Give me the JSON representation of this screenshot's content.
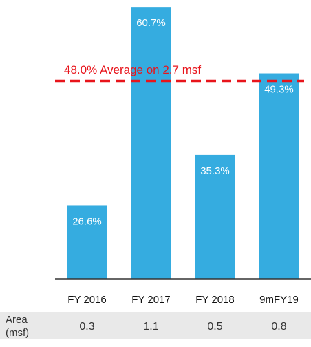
{
  "chart_data": {
    "type": "bar",
    "categories": [
      "FY 2016",
      "FY 2017",
      "FY 2018",
      "9mFY19"
    ],
    "values": [
      26.6,
      60.7,
      35.3,
      49.3
    ],
    "value_labels": [
      "26.6%",
      "60.7%",
      "35.3%",
      "49.3%"
    ],
    "color": "#35ace0",
    "ylim": [
      14,
      61.9
    ],
    "average": {
      "value": 48.0,
      "label": "48.0% Average on 2.7 msf",
      "color": "#e8141b"
    },
    "area_row": {
      "label": [
        "Area",
        "(msf)"
      ],
      "values": [
        0.3,
        1.1,
        0.5,
        0.8
      ]
    }
  }
}
